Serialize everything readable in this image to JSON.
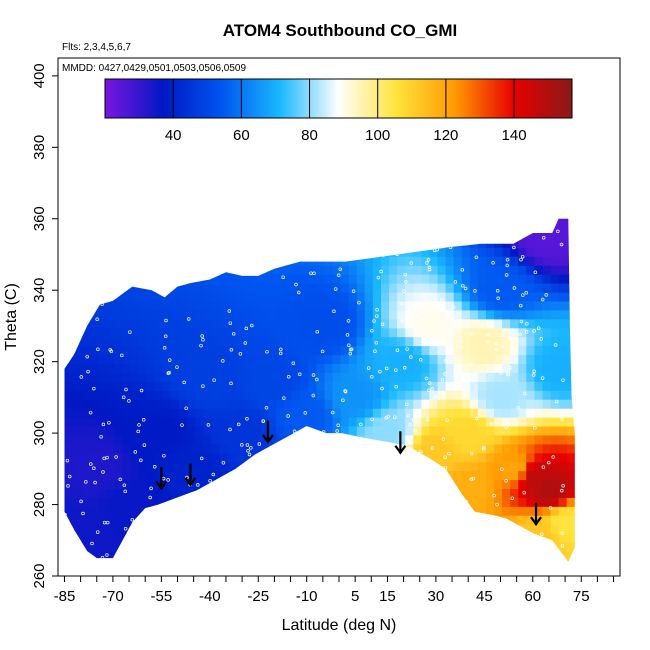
{
  "chart_data": {
    "type": "heatmap",
    "title": "ATOM4 Southbound CO_GMI",
    "subtitle": "Flts: 2,3,4,5,6,7",
    "annotation": "MMDD: 0427,0429,0501,0503,0506,0509",
    "xlabel": "Latitude (deg N)",
    "ylabel": "Theta (C)",
    "xlim": [
      -87,
      87
    ],
    "ylim": [
      260,
      405
    ],
    "x_ticks": [
      "-85",
      "-70",
      "-55",
      "-40",
      "-25",
      "-10",
      "5",
      "15",
      "30",
      "45",
      "60",
      "75"
    ],
    "y_ticks": [
      "260",
      "280",
      "300",
      "320",
      "340",
      "360",
      "380",
      "400"
    ],
    "colorbar": {
      "min": 20,
      "max": 157,
      "ticks": [
        "40",
        "60",
        "80",
        "100",
        "120",
        "140"
      ],
      "colors": [
        "#7b16e0",
        "#0018c4",
        "#0055f0",
        "#1ab8ff",
        "#ffffff",
        "#ffe33a",
        "#ff9900",
        "#e80000",
        "#8a1a1a"
      ]
    },
    "arrows": [
      {
        "lat": -55,
        "theta": 288
      },
      {
        "lat": -46,
        "theta": 289
      },
      {
        "lat": -22,
        "theta": 301
      },
      {
        "lat": 19,
        "theta": 298
      },
      {
        "lat": 61,
        "theta": 278
      }
    ],
    "field_knots": [
      {
        "lat": -83,
        "theta": 272,
        "co": 35
      },
      {
        "lat": -75,
        "theta": 290,
        "co": 33
      },
      {
        "lat": -65,
        "theta": 280,
        "co": 36
      },
      {
        "lat": -55,
        "theta": 300,
        "co": 38
      },
      {
        "lat": -45,
        "theta": 290,
        "co": 40
      },
      {
        "lat": -40,
        "theta": 315,
        "co": 48
      },
      {
        "lat": -30,
        "theta": 300,
        "co": 45
      },
      {
        "lat": -20,
        "theta": 315,
        "co": 50
      },
      {
        "lat": -10,
        "theta": 305,
        "co": 55
      },
      {
        "lat": -5,
        "theta": 330,
        "co": 52
      },
      {
        "lat": 5,
        "theta": 310,
        "co": 65
      },
      {
        "lat": 15,
        "theta": 300,
        "co": 80
      },
      {
        "lat": 20,
        "theta": 320,
        "co": 70
      },
      {
        "lat": 28,
        "theta": 330,
        "co": 90
      },
      {
        "lat": 30,
        "theta": 295,
        "co": 112
      },
      {
        "lat": 40,
        "theta": 300,
        "co": 108
      },
      {
        "lat": 40,
        "theta": 285,
        "co": 118
      },
      {
        "lat": 50,
        "theta": 310,
        "co": 82
      },
      {
        "lat": 55,
        "theta": 290,
        "co": 120
      },
      {
        "lat": 60,
        "theta": 288,
        "co": 148
      },
      {
        "lat": 65,
        "theta": 284,
        "co": 150
      },
      {
        "lat": 62,
        "theta": 272,
        "co": 112
      },
      {
        "lat": 70,
        "theta": 275,
        "co": 105
      },
      {
        "lat": 68,
        "theta": 318,
        "co": 70
      },
      {
        "lat": 50,
        "theta": 340,
        "co": 55
      },
      {
        "lat": 65,
        "theta": 355,
        "co": 25
      },
      {
        "lat": 45,
        "theta": 325,
        "co": 95
      }
    ]
  }
}
